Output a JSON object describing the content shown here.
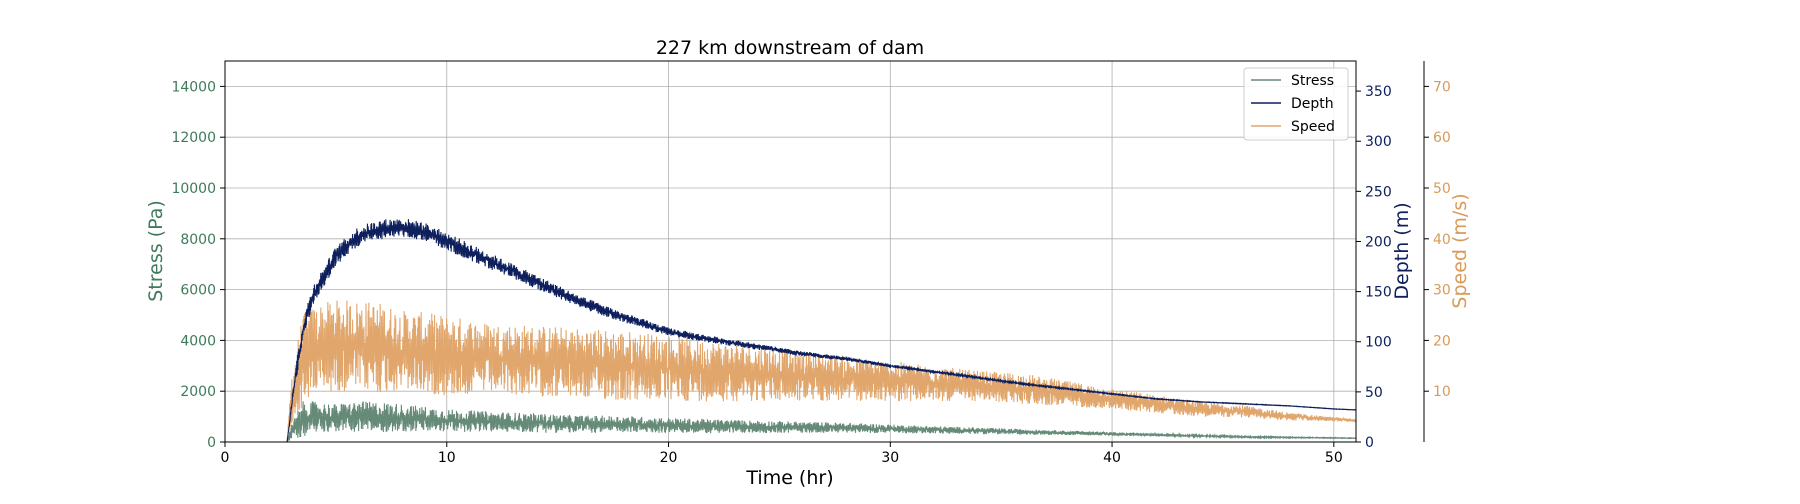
{
  "chart_data": {
    "type": "line",
    "title": "227 km downstream of dam",
    "xlabel": "Time (hr)",
    "xlim": [
      0,
      51
    ],
    "xticks": [
      "0",
      "10",
      "20",
      "30",
      "40",
      "50"
    ],
    "grid": true,
    "legend_position": "top-right",
    "axes": [
      {
        "id": "stress",
        "label": "Stress (Pa)",
        "side": "left",
        "color": "#3f7a5a",
        "ylim": [
          0,
          15000
        ],
        "ticks": [
          "0",
          "2000",
          "4000",
          "6000",
          "8000",
          "10000",
          "12000",
          "14000"
        ]
      },
      {
        "id": "depth",
        "label": "Depth (m)",
        "side": "right",
        "color": "#0d1f5c",
        "ylim": [
          0,
          380
        ],
        "ticks": [
          "0",
          "50",
          "100",
          "150",
          "200",
          "250",
          "300",
          "350"
        ]
      },
      {
        "id": "speed",
        "label": "Speed (m/s)",
        "side": "right-outer",
        "color": "#d99a5a",
        "ylim": [
          0,
          75
        ],
        "ticks": [
          "10",
          "20",
          "30",
          "40",
          "50",
          "60",
          "70"
        ]
      }
    ],
    "series": [
      {
        "name": "Stress",
        "axis": "stress",
        "color": "#668a78",
        "x": [
          0,
          2.8,
          3.0,
          3.5,
          4,
          5,
          6,
          7,
          8,
          9,
          10,
          12,
          14,
          16,
          18,
          20,
          22,
          24,
          26,
          28,
          30,
          32,
          34,
          36,
          38,
          40,
          42,
          44,
          46,
          48,
          50,
          51
        ],
        "y": [
          0,
          0,
          400,
          900,
          1000,
          950,
          1000,
          980,
          950,
          900,
          850,
          800,
          750,
          700,
          700,
          650,
          620,
          600,
          580,
          560,
          520,
          480,
          440,
          400,
          360,
          320,
          280,
          240,
          200,
          180,
          160,
          150
        ],
        "noise": [
          0,
          0,
          300,
          700,
          600,
          550,
          600,
          600,
          550,
          500,
          450,
          400,
          380,
          350,
          330,
          300,
          280,
          250,
          220,
          200,
          170,
          150,
          130,
          110,
          90,
          70,
          50,
          40,
          30,
          20,
          15,
          10
        ]
      },
      {
        "name": "Depth",
        "axis": "depth",
        "color": "#0d1f5c",
        "x": [
          0,
          2.8,
          3.2,
          3.6,
          4,
          5,
          6,
          7,
          8,
          9,
          10,
          12,
          14,
          16,
          18,
          20,
          22,
          24,
          26,
          28,
          30,
          32,
          34,
          36,
          38,
          40,
          42,
          44,
          46,
          48,
          50,
          51
        ],
        "y": [
          0,
          0,
          70,
          120,
          148,
          185,
          205,
          212,
          214,
          210,
          200,
          180,
          160,
          140,
          124,
          110,
          102,
          95,
          88,
          83,
          76,
          70,
          64,
          58,
          53,
          48,
          43,
          40,
          38,
          36,
          33,
          32
        ],
        "noise": [
          0,
          0,
          10,
          10,
          10,
          10,
          10,
          10,
          10,
          9,
          9,
          8,
          7,
          6,
          5,
          4,
          3.5,
          3,
          2.5,
          2,
          1.5,
          1.2,
          1,
          0.8,
          0.6,
          0.5,
          0.4,
          0.3,
          0.3,
          0.2,
          0.2,
          0.2
        ]
      },
      {
        "name": "Speed",
        "axis": "speed",
        "color": "#e1a66c",
        "x": [
          0,
          2.8,
          3.0,
          3.5,
          4,
          5,
          6,
          7,
          8,
          9,
          10,
          12,
          14,
          16,
          18,
          20,
          22,
          24,
          26,
          28,
          30,
          32,
          34,
          36,
          38,
          40,
          42,
          44,
          46,
          48,
          50,
          51
        ],
        "y": [
          0,
          0,
          8,
          16,
          18,
          19,
          19,
          18.5,
          18,
          17.5,
          17,
          16.5,
          16,
          15.5,
          15,
          14.5,
          14,
          13.5,
          13,
          12.5,
          12,
          11.5,
          11,
          10.5,
          9.5,
          8.5,
          7.5,
          6.5,
          6,
          5,
          4.5,
          4.2
        ],
        "noise": [
          0,
          0,
          6,
          9,
          9,
          9,
          9,
          9,
          8,
          8,
          8,
          7,
          7,
          7,
          7,
          6.5,
          6,
          5.5,
          5,
          4.5,
          4,
          3.5,
          3,
          3,
          2.5,
          2,
          1.8,
          1.5,
          1.2,
          0.8,
          0.4,
          0.3
        ]
      }
    ]
  }
}
